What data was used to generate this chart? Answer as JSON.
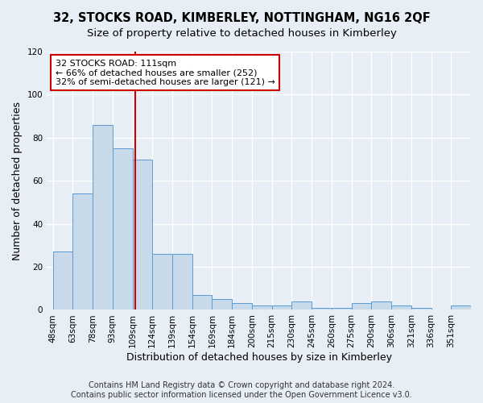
{
  "title": "32, STOCKS ROAD, KIMBERLEY, NOTTINGHAM, NG16 2QF",
  "subtitle": "Size of property relative to detached houses in Kimberley",
  "xlabel": "Distribution of detached houses by size in Kimberley",
  "ylabel": "Number of detached properties",
  "bin_labels": [
    "48sqm",
    "63sqm",
    "78sqm",
    "93sqm",
    "109sqm",
    "124sqm",
    "139sqm",
    "154sqm",
    "169sqm",
    "184sqm",
    "200sqm",
    "215sqm",
    "230sqm",
    "245sqm",
    "260sqm",
    "275sqm",
    "290sqm",
    "306sqm",
    "321sqm",
    "336sqm",
    "351sqm"
  ],
  "bin_values": [
    27,
    54,
    86,
    75,
    70,
    26,
    26,
    7,
    5,
    3,
    2,
    2,
    4,
    1,
    1,
    3,
    4,
    2,
    1,
    0,
    2
  ],
  "bar_color": "#c8d9ea",
  "bar_edge_color": "#5a9bd5",
  "vline_color": "#cc0000",
  "vline_position": 4.13,
  "ylim": [
    0,
    120
  ],
  "yticks": [
    0,
    20,
    40,
    60,
    80,
    100,
    120
  ],
  "annotation_line1": "32 STOCKS ROAD: 111sqm",
  "annotation_line2": "← 66% of detached houses are smaller (252)",
  "annotation_line3": "32% of semi-detached houses are larger (121) →",
  "footer_line1": "Contains HM Land Registry data © Crown copyright and database right 2024.",
  "footer_line2": "Contains public sector information licensed under the Open Government Licence v3.0.",
  "background_color": "#e8eef5",
  "grid_color": "#ffffff",
  "title_fontsize": 10.5,
  "subtitle_fontsize": 9.5,
  "axis_label_fontsize": 9,
  "tick_fontsize": 7.5,
  "footer_fontsize": 7,
  "annotation_fontsize": 8
}
